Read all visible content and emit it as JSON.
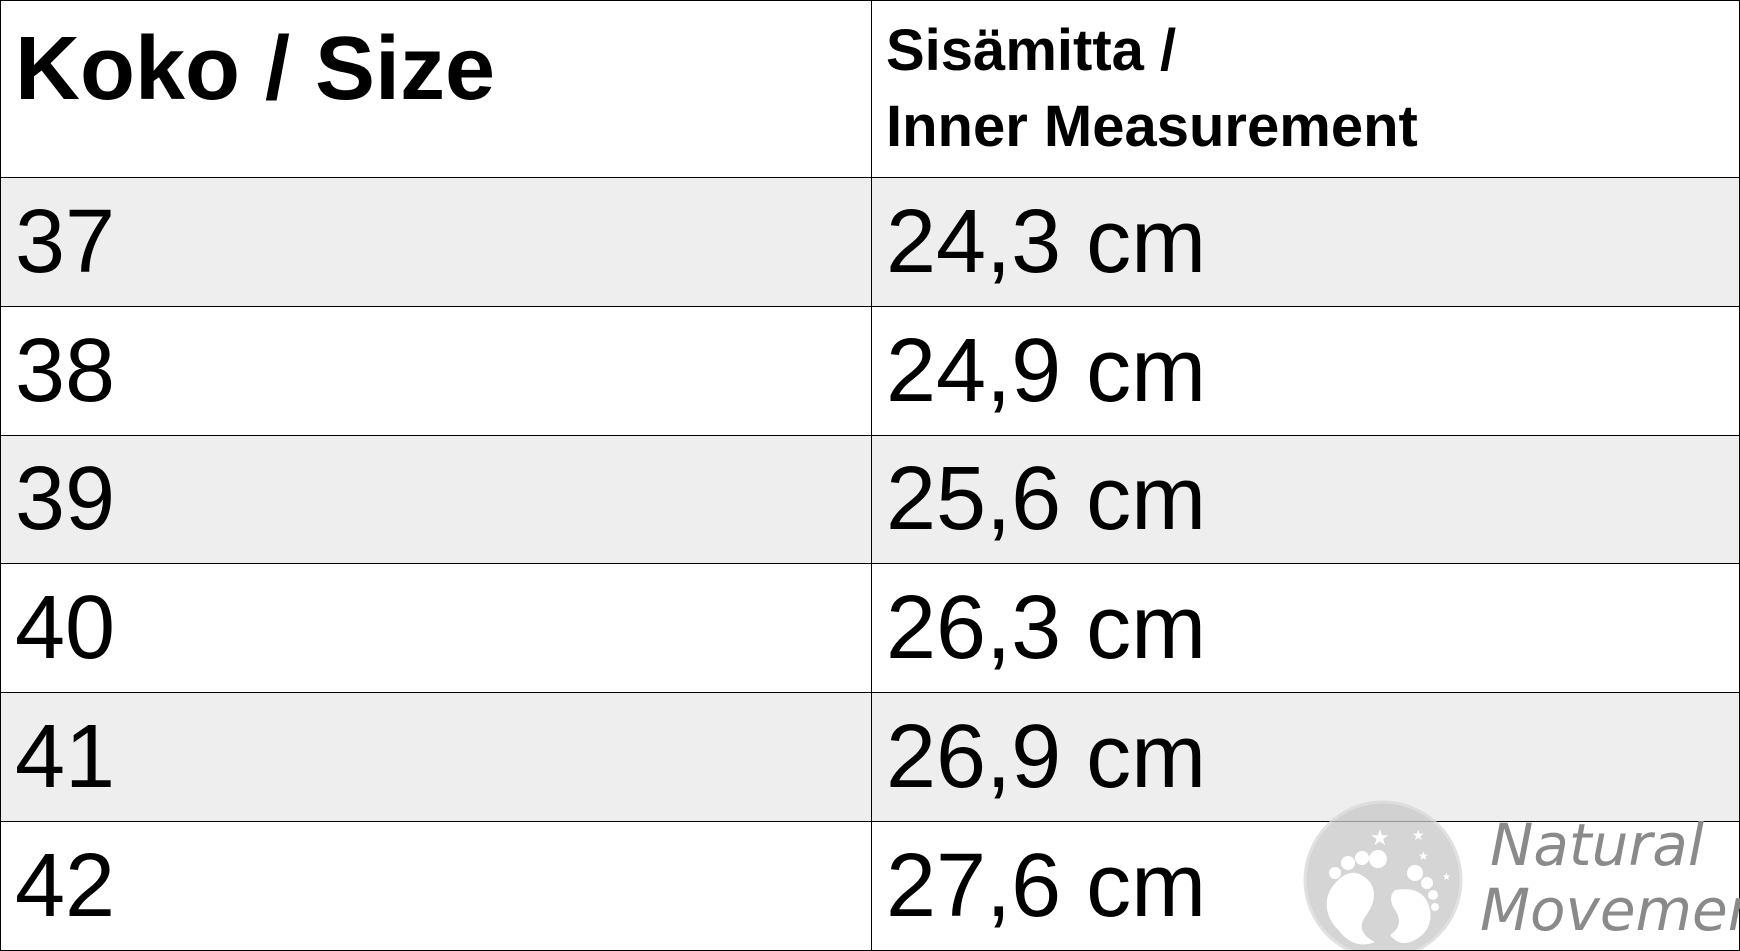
{
  "table": {
    "headers": [
      "Koko / Size",
      "Sisämitta /",
      "Inner Measurement"
    ],
    "rows": [
      {
        "size": "37",
        "measurement": "24,3 cm"
      },
      {
        "size": "38",
        "measurement": "24,9 cm"
      },
      {
        "size": "39",
        "measurement": "25,6 cm"
      },
      {
        "size": "40",
        "measurement": "26,3 cm"
      },
      {
        "size": "41",
        "measurement": "26,9 cm"
      },
      {
        "size": "42",
        "measurement": "27,6 cm"
      }
    ]
  },
  "watermark": {
    "line1": "Natural",
    "line2": "Movement",
    "icon": "footprints-logo-icon"
  },
  "colors": {
    "alt_row": "#eeeeee",
    "watermark": "#8a8a8a"
  }
}
